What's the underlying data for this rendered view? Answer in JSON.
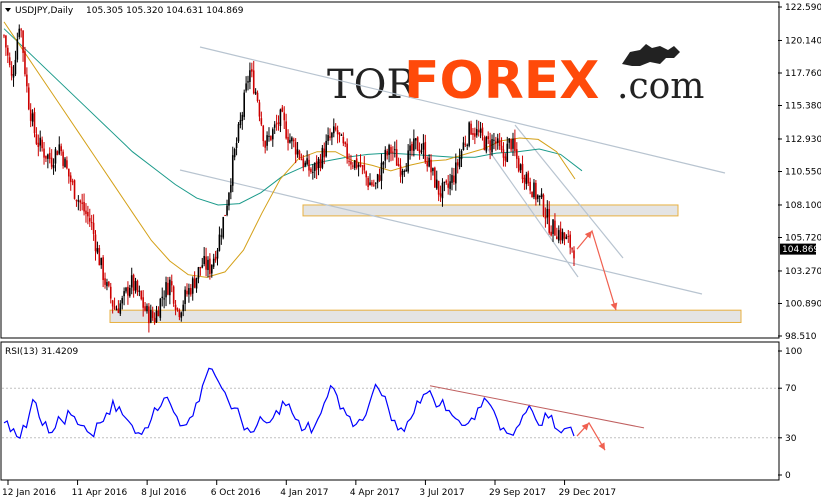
{
  "chart_data": [
    {
      "type": "candlestick",
      "title": "USDJPY,Daily",
      "ohlc": "105.305 105.320 104.631 104.869",
      "current_price": "104.869",
      "y_ticks": [
        "122.590",
        "120.140",
        "117.760",
        "115.380",
        "112.930",
        "110.550",
        "108.100",
        "105.720",
        "103.270",
        "100.890",
        "98.510"
      ],
      "ylim": [
        98.51,
        122.59
      ],
      "x_ticks": [
        "12 Jan 2016",
        "11 Apr 2016",
        "8 Jul 2016",
        "6 Oct 2016",
        "4 Jan 2017",
        "4 Apr 2017",
        "3 Jul 2017",
        "29 Sep 2017",
        "29 Dec 2017"
      ],
      "price_path": [
        120.5,
        117.2,
        121.8,
        116.0,
        113.0,
        112.0,
        111.4,
        112.5,
        110.5,
        109.0,
        107.8,
        106.8,
        104.2,
        102.0,
        100.5,
        101.0,
        102.5,
        101.5,
        100.2,
        99.8,
        101.5,
        102.5,
        100.3,
        101.5,
        102.5,
        103.8,
        103.5,
        105.2,
        107.8,
        111.5,
        114.5,
        118.0,
        116.0,
        112.5,
        113.5,
        114.5,
        113.0,
        112.2,
        111.0,
        110.5,
        111.5,
        112.8,
        113.5,
        112.0,
        111.3,
        111.0,
        109.8,
        109.5,
        111.5,
        112.2,
        110.8,
        111.5,
        112.5,
        112.2,
        110.5,
        109.0,
        109.2,
        110.5,
        112.5,
        113.8,
        113.2,
        112.5,
        112.8,
        111.5,
        112.8,
        111.0,
        110.2,
        109.0,
        108.2,
        106.5,
        106.2,
        105.5,
        104.87
      ],
      "ma_slow": [
        121.0,
        119.5,
        118.0,
        116.5,
        115.0,
        113.5,
        112.0,
        110.8,
        109.6,
        108.6,
        108.1,
        108.2,
        109.0,
        110.2,
        110.9,
        111.3,
        111.6,
        111.8,
        111.9,
        111.8,
        111.7,
        111.6,
        111.6,
        111.9,
        112.0,
        112.2,
        111.8,
        110.6
      ],
      "ma_fast": [
        121.5,
        119.5,
        117.5,
        115.5,
        113.5,
        111.5,
        109.5,
        107.5,
        105.5,
        104.0,
        103.0,
        102.8,
        103.2,
        104.8,
        107.5,
        110.0,
        111.5,
        112.0,
        112.0,
        111.3,
        111.0,
        110.6,
        111.0,
        111.3,
        111.4,
        111.8,
        112.2,
        112.8,
        113.0,
        112.9,
        112.0,
        110.0
      ],
      "support_zone": [
        108.1,
        107.3
      ],
      "lower_zone": [
        100.4,
        99.5
      ],
      "forecast_path": [
        104.87,
        106.2,
        100.4
      ]
    },
    {
      "type": "line",
      "title": "RSI(13) 31.4209",
      "y_ticks": [
        "100",
        "70",
        "30",
        "0"
      ],
      "ylim": [
        0,
        100
      ],
      "levels": [
        70,
        30
      ],
      "values": [
        42,
        35,
        31,
        40,
        50,
        58,
        40,
        34,
        38,
        44,
        52,
        47,
        40,
        35,
        31,
        42,
        50,
        60,
        55,
        46,
        40,
        34,
        38,
        45,
        52,
        62,
        57,
        47,
        40,
        46,
        58,
        72,
        86,
        80,
        70,
        60,
        54,
        45,
        38,
        35,
        47,
        42,
        46,
        49,
        56,
        50,
        44,
        37,
        34,
        45,
        58,
        72,
        64,
        54,
        47,
        41,
        44,
        57,
        73,
        64,
        54,
        44,
        38,
        43,
        50,
        58,
        66,
        62,
        56,
        52,
        48,
        44,
        40,
        46,
        54,
        62,
        56,
        45,
        38,
        33,
        38,
        48,
        56,
        45,
        40,
        46,
        38,
        34,
        38,
        31.42
      ],
      "trendline": [
        72,
        38
      ],
      "forecast_path": [
        31.42,
        42,
        20
      ]
    }
  ],
  "logo": {
    "part1": "TOR",
    "part2": "FOREX",
    "part3": ".com"
  },
  "colors": {
    "bull": "#000000",
    "bear": "#cc0000",
    "ma_fast": "#d4a017",
    "ma_slow": "#1a9a8a",
    "rsi": "#0000ff",
    "channel": "#b8c4d0",
    "zone_fill": "#e4e4e4",
    "zone_border": "#e8b040",
    "arrow": "#f06050",
    "rsi_trend": "#c06060"
  }
}
